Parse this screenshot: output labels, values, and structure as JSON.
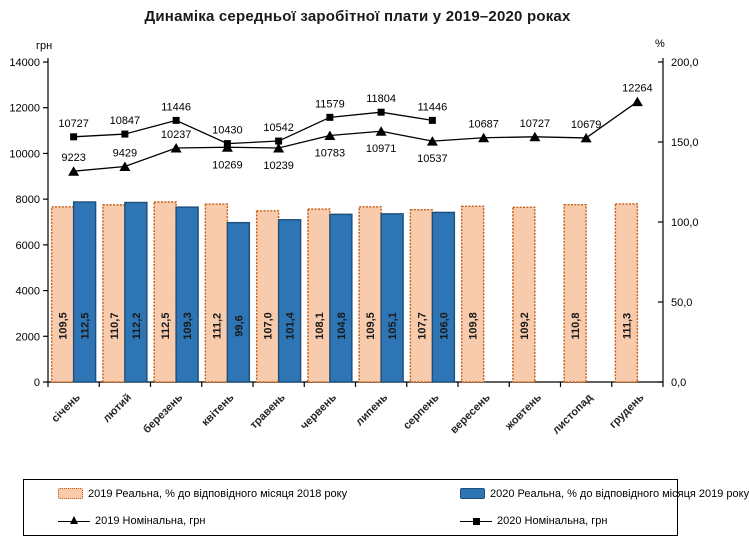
{
  "title": "Динаміка середньої заробітної плати у 2019–2020 роках",
  "chart_data": {
    "type": "bar",
    "subtype": "combo-bar-line-dual-axis",
    "title": "Динаміка середньої заробітної плати у 2019–2020 роках",
    "grid": false,
    "legend_position": "bottom-box",
    "left_axis": {
      "label": "грн",
      "min": 0,
      "max": 14000,
      "step": 2000
    },
    "right_axis": {
      "label": "%",
      "min": 0,
      "max": 200,
      "step": 50,
      "tick_labels": [
        "0,0",
        "50,0",
        "100,0",
        "150,0",
        "200,0"
      ]
    },
    "categories": [
      "січень",
      "лютий",
      "березень",
      "квітень",
      "травень",
      "червень",
      "липень",
      "серпень",
      "вересень",
      "жовтень",
      "листопад",
      "грудень"
    ],
    "bar_series": [
      {
        "name": "2019 Реальна, % до відповідного місяця 2018 року",
        "axis": "right",
        "fill": "#F8CBAD",
        "border": "#C55A11",
        "values": [
          109.5,
          110.7,
          112.5,
          111.2,
          107.0,
          108.1,
          109.5,
          107.7,
          109.8,
          109.2,
          110.8,
          111.3
        ]
      },
      {
        "name": "2020 Реальна, % до відповідного місяця 2019 року",
        "axis": "right",
        "fill": "#2E75B6",
        "border": "#1F4E79",
        "values": [
          112.5,
          112.2,
          109.3,
          99.6,
          101.4,
          104.8,
          105.1,
          106.0,
          null,
          null,
          null,
          null
        ]
      }
    ],
    "line_series": [
      {
        "name": "2019 Номінальна, грн",
        "axis": "left",
        "marker": "triangle",
        "color": "#000000",
        "values": [
          9223,
          9429,
          10237,
          10269,
          10239,
          10783,
          10971,
          10537,
          10687,
          10727,
          10679,
          12264
        ],
        "labels_below": [
          3,
          4,
          5,
          6,
          7
        ]
      },
      {
        "name": "2020 Номінальна, грн",
        "axis": "left",
        "marker": "square",
        "color": "#000000",
        "values": [
          10727,
          10847,
          11446,
          10430,
          10542,
          11579,
          11804,
          11446,
          null,
          null,
          null,
          null
        ],
        "labels_below": []
      }
    ]
  }
}
